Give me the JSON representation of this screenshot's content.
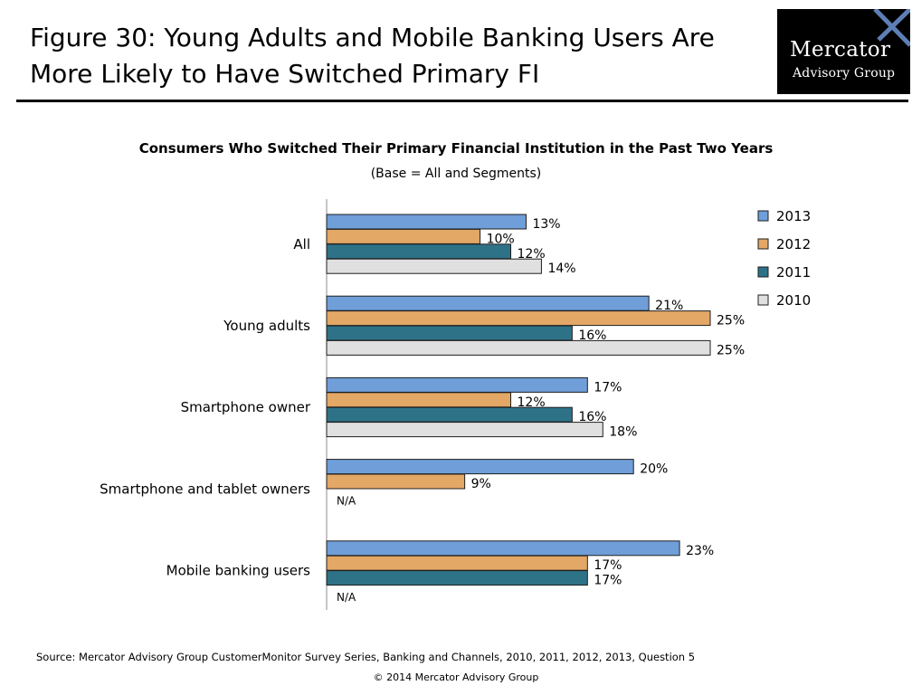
{
  "figure_title": "Figure 30: Young Adults and Mobile Banking Users Are More Likely to Have Switched Primary FI",
  "logo": {
    "line1": "Mercator",
    "line2": "Advisory Group"
  },
  "chart_data": {
    "type": "bar",
    "orientation": "horizontal",
    "title": "Consumers Who Switched Their Primary Financial Institution in the Past Two Years",
    "subtitle": "(Base = All and Segments)",
    "categories": [
      "All",
      "Young adults",
      "Smartphone owner",
      "Smartphone and tablet owners",
      "Mobile banking users"
    ],
    "series": [
      {
        "name": "2013",
        "color": "#6f9ed9",
        "values": [
          13,
          21,
          17,
          20,
          23
        ]
      },
      {
        "name": "2012",
        "color": "#e3a766",
        "values": [
          10,
          25,
          12,
          9,
          17
        ]
      },
      {
        "name": "2011",
        "color": "#2e7287",
        "values": [
          12,
          16,
          16,
          null,
          17
        ]
      },
      {
        "name": "2010",
        "color": "#e0e0e0",
        "values": [
          14,
          25,
          18,
          null,
          null
        ]
      }
    ],
    "value_suffix": "%",
    "missing_label": "N/A",
    "legend_position": "right",
    "xlim": [
      0,
      25
    ],
    "grid": false
  },
  "footer": {
    "source": "Source: Mercator Advisory Group CustomerMonitor Survey Series, Banking and Channels, 2010, 2011,  2012,  2013,  Question 5",
    "copyright": "© 2014 Mercator Advisory Group"
  }
}
